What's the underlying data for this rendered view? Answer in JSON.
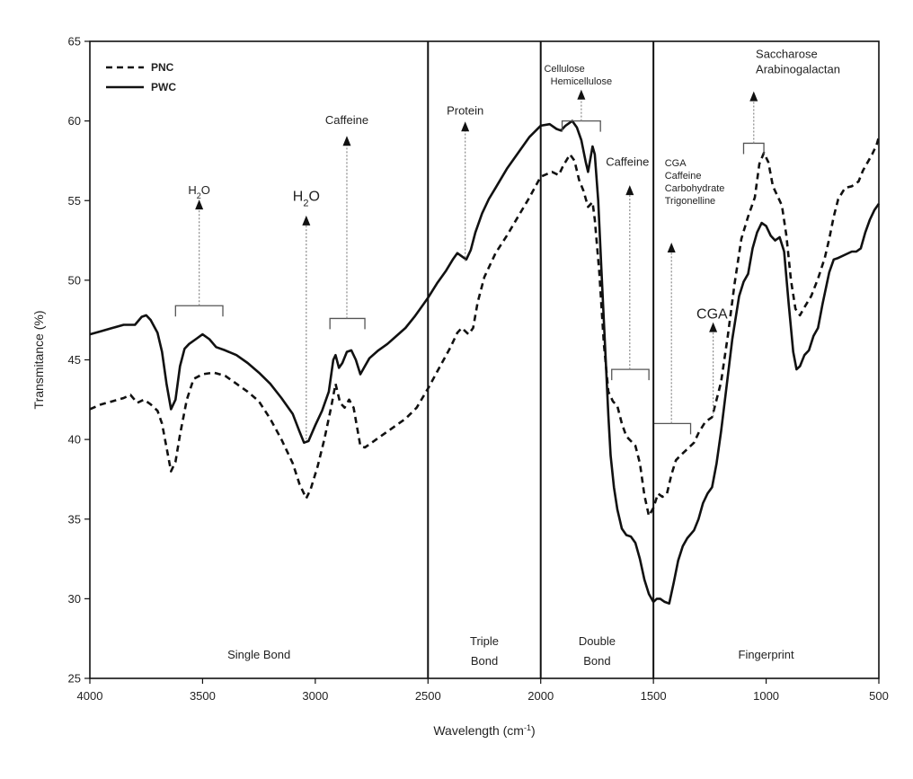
{
  "chart_data": {
    "type": "line",
    "xlabel": "Wavelength (cm",
    "xlabel_sup": "-1",
    "xlabel_close": ")",
    "ylabel": "Transmitance (%)",
    "xlim": [
      4000,
      500
    ],
    "ylim": [
      25,
      65
    ],
    "x_ticks": [
      4000,
      3500,
      3000,
      2500,
      2000,
      1500,
      1000,
      500
    ],
    "y_ticks": [
      25,
      30,
      35,
      40,
      45,
      50,
      55,
      60,
      65
    ],
    "legend_position": "top-left",
    "series": [
      {
        "name": "PNC",
        "style": "dashed",
        "points": [
          [
            4000,
            41.9
          ],
          [
            3950,
            42.2
          ],
          [
            3900,
            42.4
          ],
          [
            3850,
            42.6
          ],
          [
            3820,
            42.8
          ],
          [
            3790,
            42.3
          ],
          [
            3760,
            42.5
          ],
          [
            3730,
            42.2
          ],
          [
            3700,
            41.8
          ],
          [
            3680,
            41.0
          ],
          [
            3660,
            39.5
          ],
          [
            3640,
            38.0
          ],
          [
            3620,
            38.6
          ],
          [
            3600,
            40.3
          ],
          [
            3570,
            42.5
          ],
          [
            3540,
            43.8
          ],
          [
            3500,
            44.1
          ],
          [
            3450,
            44.2
          ],
          [
            3400,
            44.0
          ],
          [
            3350,
            43.5
          ],
          [
            3300,
            43.0
          ],
          [
            3250,
            42.4
          ],
          [
            3200,
            41.3
          ],
          [
            3150,
            40.0
          ],
          [
            3100,
            38.5
          ],
          [
            3070,
            37.2
          ],
          [
            3040,
            36.3
          ],
          [
            3020,
            36.9
          ],
          [
            2990,
            38.3
          ],
          [
            2960,
            40.0
          ],
          [
            2930,
            42.0
          ],
          [
            2910,
            43.5
          ],
          [
            2890,
            42.3
          ],
          [
            2870,
            42.0
          ],
          [
            2850,
            42.5
          ],
          [
            2830,
            42.0
          ],
          [
            2800,
            39.6
          ],
          [
            2780,
            39.5
          ],
          [
            2750,
            39.8
          ],
          [
            2700,
            40.3
          ],
          [
            2650,
            40.8
          ],
          [
            2600,
            41.3
          ],
          [
            2550,
            42.0
          ],
          [
            2500,
            43.2
          ],
          [
            2450,
            44.5
          ],
          [
            2400,
            45.8
          ],
          [
            2370,
            46.7
          ],
          [
            2350,
            47.0
          ],
          [
            2320,
            46.6
          ],
          [
            2300,
            47.0
          ],
          [
            2280,
            48.6
          ],
          [
            2250,
            50.2
          ],
          [
            2200,
            51.7
          ],
          [
            2150,
            52.8
          ],
          [
            2100,
            54.0
          ],
          [
            2050,
            55.2
          ],
          [
            2000,
            56.5
          ],
          [
            1950,
            56.8
          ],
          [
            1920,
            56.6
          ],
          [
            1900,
            57.2
          ],
          [
            1870,
            57.9
          ],
          [
            1850,
            57.5
          ],
          [
            1830,
            56.3
          ],
          [
            1810,
            55.6
          ],
          [
            1790,
            54.6
          ],
          [
            1770,
            54.9
          ],
          [
            1760,
            53.8
          ],
          [
            1740,
            50.5
          ],
          [
            1720,
            46.0
          ],
          [
            1700,
            43.0
          ],
          [
            1680,
            42.4
          ],
          [
            1660,
            42.1
          ],
          [
            1640,
            41.0
          ],
          [
            1620,
            40.2
          ],
          [
            1600,
            39.9
          ],
          [
            1580,
            39.6
          ],
          [
            1560,
            38.5
          ],
          [
            1540,
            36.5
          ],
          [
            1520,
            35.2
          ],
          [
            1500,
            35.7
          ],
          [
            1480,
            36.6
          ],
          [
            1460,
            36.4
          ],
          [
            1440,
            36.6
          ],
          [
            1420,
            37.8
          ],
          [
            1400,
            38.7
          ],
          [
            1380,
            39.0
          ],
          [
            1350,
            39.4
          ],
          [
            1320,
            39.8
          ],
          [
            1300,
            40.4
          ],
          [
            1270,
            41.1
          ],
          [
            1240,
            41.4
          ],
          [
            1200,
            43.6
          ],
          [
            1170,
            46.5
          ],
          [
            1140,
            49.8
          ],
          [
            1110,
            52.6
          ],
          [
            1080,
            54.0
          ],
          [
            1050,
            55.2
          ],
          [
            1030,
            57.3
          ],
          [
            1010,
            58.0
          ],
          [
            990,
            57.4
          ],
          [
            970,
            55.9
          ],
          [
            950,
            55.3
          ],
          [
            930,
            54.7
          ],
          [
            910,
            52.8
          ],
          [
            890,
            50.0
          ],
          [
            870,
            48.2
          ],
          [
            850,
            47.8
          ],
          [
            830,
            48.3
          ],
          [
            800,
            49.0
          ],
          [
            770,
            50.1
          ],
          [
            740,
            51.4
          ],
          [
            720,
            52.6
          ],
          [
            700,
            54.0
          ],
          [
            680,
            55.1
          ],
          [
            650,
            55.8
          ],
          [
            620,
            55.9
          ],
          [
            590,
            56.2
          ],
          [
            570,
            56.9
          ],
          [
            550,
            57.4
          ],
          [
            530,
            57.9
          ],
          [
            510,
            58.5
          ],
          [
            500,
            59.0
          ]
        ]
      },
      {
        "name": "PWC",
        "style": "solid",
        "points": [
          [
            4000,
            46.6
          ],
          [
            3950,
            46.8
          ],
          [
            3900,
            47.0
          ],
          [
            3850,
            47.2
          ],
          [
            3800,
            47.2
          ],
          [
            3770,
            47.7
          ],
          [
            3750,
            47.8
          ],
          [
            3730,
            47.5
          ],
          [
            3700,
            46.7
          ],
          [
            3680,
            45.5
          ],
          [
            3660,
            43.5
          ],
          [
            3640,
            41.9
          ],
          [
            3620,
            42.5
          ],
          [
            3600,
            44.6
          ],
          [
            3580,
            45.7
          ],
          [
            3560,
            46.0
          ],
          [
            3530,
            46.3
          ],
          [
            3500,
            46.6
          ],
          [
            3470,
            46.3
          ],
          [
            3440,
            45.8
          ],
          [
            3400,
            45.6
          ],
          [
            3350,
            45.3
          ],
          [
            3300,
            44.8
          ],
          [
            3250,
            44.2
          ],
          [
            3200,
            43.5
          ],
          [
            3150,
            42.6
          ],
          [
            3100,
            41.6
          ],
          [
            3070,
            40.5
          ],
          [
            3050,
            39.8
          ],
          [
            3030,
            39.9
          ],
          [
            3000,
            40.9
          ],
          [
            2970,
            41.8
          ],
          [
            2940,
            43.0
          ],
          [
            2920,
            45.0
          ],
          [
            2910,
            45.3
          ],
          [
            2895,
            44.5
          ],
          [
            2880,
            44.8
          ],
          [
            2860,
            45.5
          ],
          [
            2840,
            45.6
          ],
          [
            2820,
            45.0
          ],
          [
            2800,
            44.1
          ],
          [
            2780,
            44.6
          ],
          [
            2760,
            45.1
          ],
          [
            2720,
            45.6
          ],
          [
            2680,
            46.0
          ],
          [
            2640,
            46.5
          ],
          [
            2600,
            47.0
          ],
          [
            2560,
            47.7
          ],
          [
            2520,
            48.5
          ],
          [
            2500,
            48.9
          ],
          [
            2460,
            49.8
          ],
          [
            2420,
            50.6
          ],
          [
            2390,
            51.3
          ],
          [
            2370,
            51.7
          ],
          [
            2350,
            51.5
          ],
          [
            2330,
            51.3
          ],
          [
            2310,
            51.9
          ],
          [
            2290,
            53.0
          ],
          [
            2260,
            54.2
          ],
          [
            2230,
            55.1
          ],
          [
            2200,
            55.8
          ],
          [
            2150,
            57.0
          ],
          [
            2100,
            58.0
          ],
          [
            2050,
            59.0
          ],
          [
            2000,
            59.7
          ],
          [
            1960,
            59.8
          ],
          [
            1930,
            59.5
          ],
          [
            1910,
            59.4
          ],
          [
            1890,
            59.7
          ],
          [
            1860,
            60.0
          ],
          [
            1840,
            59.6
          ],
          [
            1820,
            58.8
          ],
          [
            1800,
            57.4
          ],
          [
            1790,
            56.8
          ],
          [
            1780,
            57.6
          ],
          [
            1770,
            58.4
          ],
          [
            1760,
            57.9
          ],
          [
            1745,
            55.0
          ],
          [
            1730,
            50.5
          ],
          [
            1715,
            46.0
          ],
          [
            1700,
            41.5
          ],
          [
            1690,
            39.0
          ],
          [
            1675,
            37.0
          ],
          [
            1660,
            35.6
          ],
          [
            1640,
            34.4
          ],
          [
            1620,
            34.0
          ],
          [
            1600,
            33.9
          ],
          [
            1580,
            33.5
          ],
          [
            1560,
            32.5
          ],
          [
            1540,
            31.2
          ],
          [
            1520,
            30.3
          ],
          [
            1500,
            29.8
          ],
          [
            1485,
            30.0
          ],
          [
            1470,
            30.0
          ],
          [
            1450,
            29.8
          ],
          [
            1430,
            29.7
          ],
          [
            1410,
            31.0
          ],
          [
            1390,
            32.4
          ],
          [
            1370,
            33.3
          ],
          [
            1350,
            33.8
          ],
          [
            1320,
            34.3
          ],
          [
            1300,
            35.0
          ],
          [
            1280,
            36.0
          ],
          [
            1260,
            36.6
          ],
          [
            1240,
            37.0
          ],
          [
            1220,
            38.5
          ],
          [
            1200,
            40.5
          ],
          [
            1180,
            42.8
          ],
          [
            1150,
            46.3
          ],
          [
            1120,
            49.0
          ],
          [
            1100,
            49.9
          ],
          [
            1080,
            50.4
          ],
          [
            1060,
            52.0
          ],
          [
            1040,
            53.0
          ],
          [
            1020,
            53.6
          ],
          [
            1000,
            53.4
          ],
          [
            980,
            52.8
          ],
          [
            960,
            52.5
          ],
          [
            940,
            52.7
          ],
          [
            920,
            51.8
          ],
          [
            900,
            48.5
          ],
          [
            880,
            45.5
          ],
          [
            865,
            44.4
          ],
          [
            850,
            44.6
          ],
          [
            830,
            45.3
          ],
          [
            810,
            45.6
          ],
          [
            790,
            46.5
          ],
          [
            770,
            47.0
          ],
          [
            750,
            48.5
          ],
          [
            720,
            50.5
          ],
          [
            700,
            51.3
          ],
          [
            680,
            51.4
          ],
          [
            650,
            51.6
          ],
          [
            620,
            51.8
          ],
          [
            600,
            51.8
          ],
          [
            580,
            52.0
          ],
          [
            560,
            53.0
          ],
          [
            540,
            53.8
          ],
          [
            520,
            54.4
          ],
          [
            500,
            54.8
          ]
        ]
      }
    ],
    "vertical_lines": [
      2500,
      2000,
      1500
    ],
    "regions": [
      {
        "lines": [
          "Single Bond"
        ],
        "x": 3250
      },
      {
        "lines": [
          "Triple",
          "Bond"
        ],
        "x": 2250
      },
      {
        "lines": [
          "Double",
          "Bond"
        ],
        "x": 1750
      },
      {
        "lines": [
          "Fingerprint"
        ],
        "x": 1000
      }
    ],
    "annotations": [
      {
        "id": "h2o-1",
        "lines": [
          "H",
          "O"
        ],
        "subscript": "2",
        "size": "normal",
        "bracket": [
          3620,
          3410,
          48.4
        ],
        "arrow_x": 3515,
        "arrow_from": 48.4,
        "arrow_to": 54.5,
        "text_x": 3515,
        "text_y": 55.4
      },
      {
        "id": "h2o-2",
        "lines": [
          "H",
          "O"
        ],
        "subscript": "2",
        "size": "big",
        "arrow_x": 3040,
        "arrow_from": 40.0,
        "arrow_to": 53.5,
        "text_x": 3040,
        "text_y": 55.0
      },
      {
        "id": "caffeine-1",
        "lines": [
          "Caffeine"
        ],
        "size": "normal",
        "bracket": [
          2935,
          2780,
          47.6
        ],
        "arrow_x": 2860,
        "arrow_from": 47.6,
        "arrow_to": 58.5,
        "text_x": 2860,
        "text_y": 59.8
      },
      {
        "id": "protein",
        "lines": [
          "Protein"
        ],
        "size": "normal",
        "arrow_x": 2335,
        "arrow_from": 51.2,
        "arrow_to": 59.4,
        "text_x": 2335,
        "text_y": 60.4
      },
      {
        "id": "cellulose",
        "lines": [
          "Cellulose",
          "Hemicellulose"
        ],
        "size": "small",
        "bracket": [
          1905,
          1735,
          60.0
        ],
        "arrow_x": 1820,
        "arrow_from": 60.0,
        "arrow_to": 61.4,
        "text_x": 1820,
        "text_y": 62.3
      },
      {
        "id": "caffeine-2",
        "lines": [
          "Caffeine"
        ],
        "size": "normal",
        "bracket": [
          1685,
          1520,
          44.4
        ],
        "arrow_x": 1605,
        "arrow_from": 44.4,
        "arrow_to": 55.4,
        "text_x": 1615,
        "text_y": 57.2
      },
      {
        "id": "cga-group",
        "lines": [
          "CGA",
          "Caffeine",
          "Carbohydrate",
          "Trigonelline"
        ],
        "size": "small",
        "bracket": [
          1500,
          1335,
          41.0
        ],
        "arrow_x": 1420,
        "arrow_from": 41.0,
        "arrow_to": 51.8,
        "text_x": 1410,
        "text_y": 54.8
      },
      {
        "id": "cga",
        "lines": [
          "CGA"
        ],
        "size": "big",
        "arrow_x": 1235,
        "arrow_from": 41.4,
        "arrow_to": 46.8,
        "text_x": 1240,
        "text_y": 47.6
      },
      {
        "id": "saccharose",
        "lines": [
          "Saccharose",
          "Arabinogalactan"
        ],
        "size": "normal",
        "bracket": [
          1100,
          1010,
          58.6
        ],
        "arrow_x": 1055,
        "arrow_from": 58.6,
        "arrow_to": 61.3,
        "text_x": 960,
        "text_y": 63.0
      }
    ]
  }
}
